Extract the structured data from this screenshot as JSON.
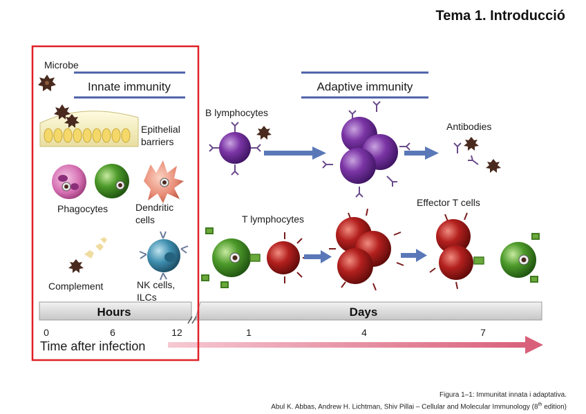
{
  "slide_title": "Tema 1. Introducció",
  "innate": {
    "header": "Innate immunity",
    "microbe": "Microbe",
    "epithelial": [
      "Epithelial",
      "barriers"
    ],
    "phagocytes": "Phagocytes",
    "dendritic": [
      "Dendritic",
      "cells"
    ],
    "complement": "Complement",
    "nk": [
      "NK cells,",
      "ILCs"
    ]
  },
  "adaptive": {
    "header": "Adaptive immunity",
    "b_lymphocytes": "B lymphocytes",
    "antibodies": "Antibodies",
    "t_lymphocytes": "T lymphocytes",
    "effector_t": "Effector T cells"
  },
  "timeline": {
    "hours_label": "Hours",
    "days_label": "Days",
    "ticks": [
      "0",
      "6",
      "12",
      "1",
      "4",
      "7"
    ],
    "axis_label": "Time after infection"
  },
  "caption": {
    "line1": "Figura 1–1: Immunitat innata i adaptativa.",
    "line2": "Abul K. Abbas, Andrew H. Lichtman, Shiv Pillai – Cellular and Molecular Immunology (8",
    "sup": "th",
    "line2_end": " edition)"
  },
  "colors": {
    "highlight_box": "#e01f26",
    "header_bar": "#4a5fa8",
    "b_cell": "#6a2c91",
    "t_cell": "#b3201e",
    "helper_cell": "#4d9a2a",
    "nk_cell": "#3f8fb0",
    "microbe": "#4a2a1e",
    "arrow": "#5a78b8",
    "time_arrow": "#d9607a"
  }
}
